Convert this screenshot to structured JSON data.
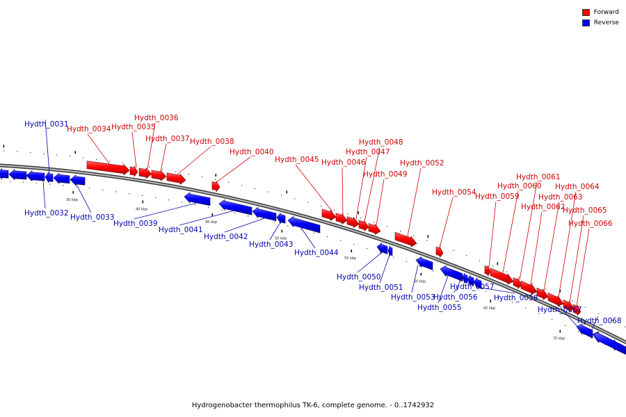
{
  "caption": "Hydrogenobacter thermophilus TK-6, complete genome. - 0..1742932",
  "legend": {
    "items": [
      {
        "label": "Forward",
        "color": "#ff0000"
      },
      {
        "label": "Reverse",
        "color": "#0000ff"
      }
    ]
  },
  "colors": {
    "forward": "#ff0000",
    "reverse": "#0000ff",
    "forward_label": "#cc0000",
    "reverse_label": "#0000aa",
    "backbone": "#7a7a7a"
  },
  "scale_labels": [
    "35 kbp",
    "40 kbp",
    "45 kbp",
    "50 kbp",
    "55 kbp",
    "60 kbp",
    "65 kbp",
    "70 kbp"
  ],
  "genes": [
    {
      "name": "Hydth_0031",
      "strand": "reverse"
    },
    {
      "name": "Hydth_0032",
      "strand": "reverse"
    },
    {
      "name": "Hydth_0033",
      "strand": "reverse"
    },
    {
      "name": "Hydth_0034",
      "strand": "forward"
    },
    {
      "name": "Hydth_0035",
      "strand": "forward"
    },
    {
      "name": "Hydth_0036",
      "strand": "forward"
    },
    {
      "name": "Hydth_0037",
      "strand": "forward"
    },
    {
      "name": "Hydth_0038",
      "strand": "forward"
    },
    {
      "name": "Hydth_0039",
      "strand": "reverse"
    },
    {
      "name": "Hydth_0040",
      "strand": "forward"
    },
    {
      "name": "Hydth_0041",
      "strand": "reverse"
    },
    {
      "name": "Hydth_0042",
      "strand": "reverse"
    },
    {
      "name": "Hydth_0043",
      "strand": "reverse"
    },
    {
      "name": "Hydth_0044",
      "strand": "reverse"
    },
    {
      "name": "Hydth_0045",
      "strand": "forward"
    },
    {
      "name": "Hydth_0046",
      "strand": "forward"
    },
    {
      "name": "Hydth_0047",
      "strand": "forward"
    },
    {
      "name": "Hydth_0048",
      "strand": "forward"
    },
    {
      "name": "Hydth_0049",
      "strand": "forward"
    },
    {
      "name": "Hydth_0050",
      "strand": "reverse"
    },
    {
      "name": "Hydth_0051",
      "strand": "reverse"
    },
    {
      "name": "Hydth_0052",
      "strand": "forward"
    },
    {
      "name": "Hydth_0053",
      "strand": "reverse"
    },
    {
      "name": "Hydth_0054",
      "strand": "forward"
    },
    {
      "name": "Hydth_0055",
      "strand": "reverse"
    },
    {
      "name": "Hydth_0056",
      "strand": "reverse"
    },
    {
      "name": "Hydth_0057",
      "strand": "reverse"
    },
    {
      "name": "Hydth_0058",
      "strand": "reverse"
    },
    {
      "name": "Hydth_0059",
      "strand": "forward"
    },
    {
      "name": "Hydth_0060",
      "strand": "forward"
    },
    {
      "name": "Hydth_0061",
      "strand": "forward"
    },
    {
      "name": "Hydth_0062",
      "strand": "forward"
    },
    {
      "name": "Hydth_0063",
      "strand": "forward"
    },
    {
      "name": "Hydth_0064",
      "strand": "forward"
    },
    {
      "name": "Hydth_0065",
      "strand": "forward"
    },
    {
      "name": "Hydth_0066",
      "strand": "forward"
    },
    {
      "name": "Hydth_0067",
      "strand": "reverse"
    },
    {
      "name": "Hydth_0068",
      "strand": "reverse"
    }
  ]
}
